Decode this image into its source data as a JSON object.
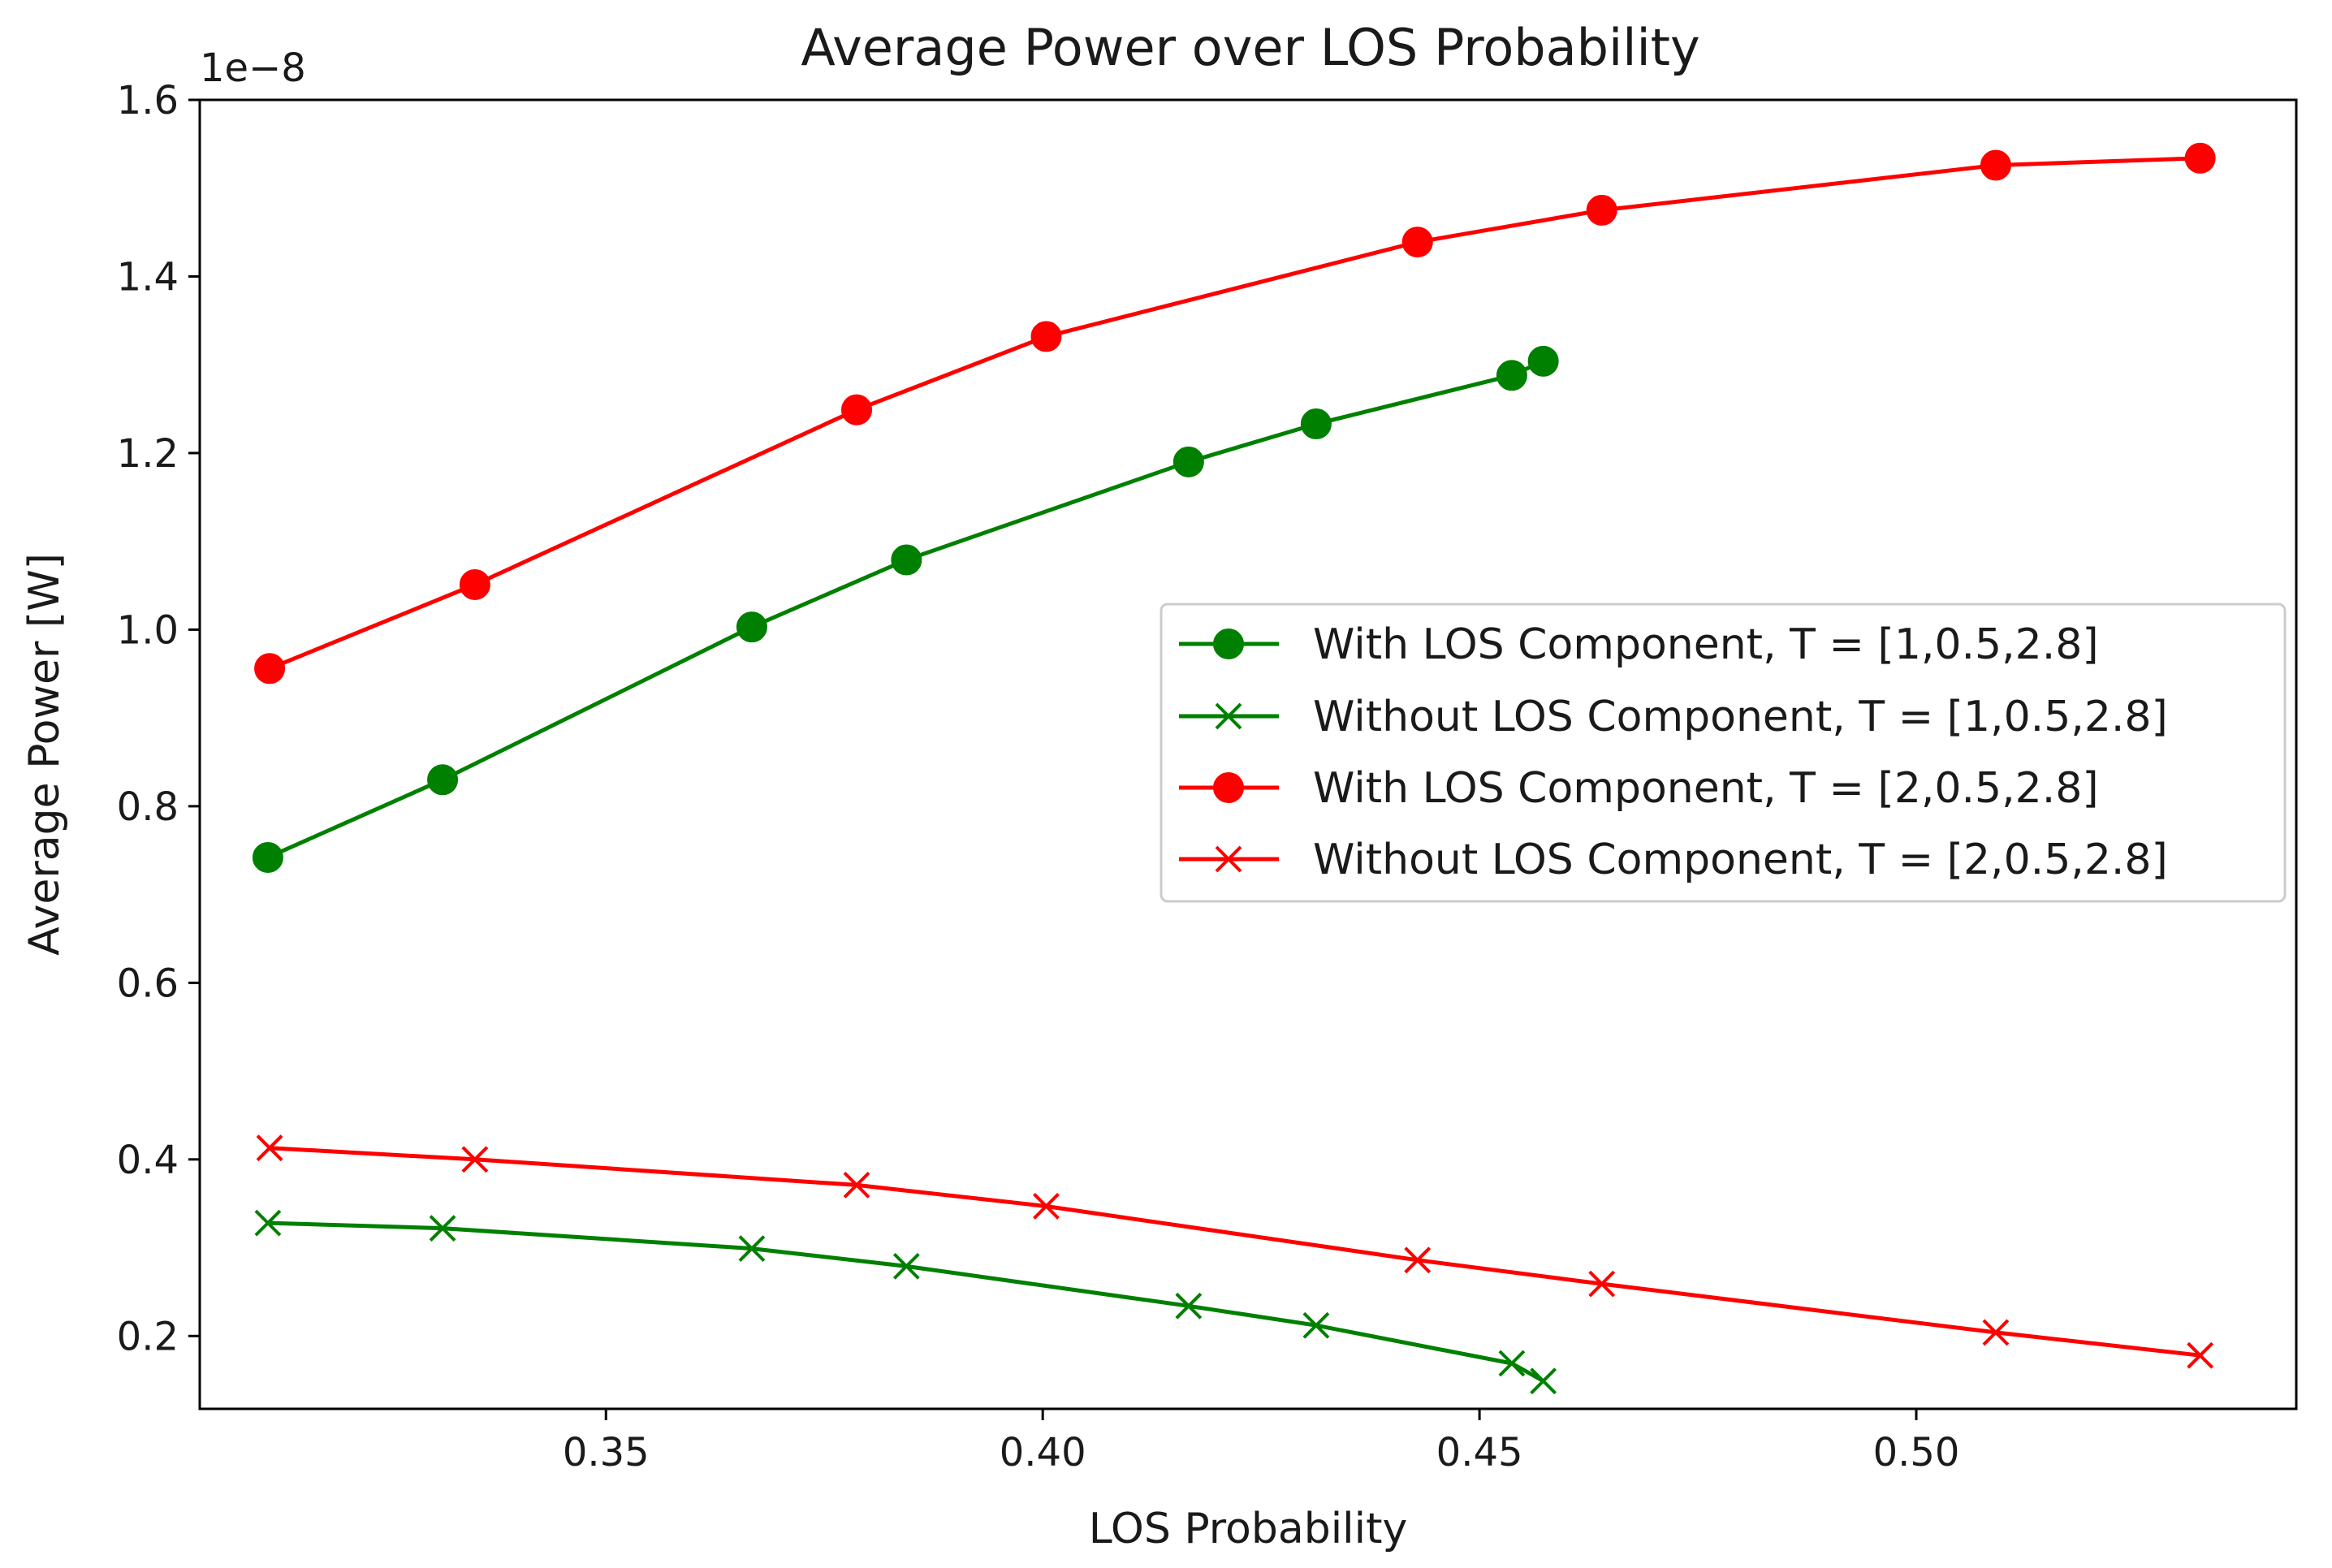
{
  "chart_data": {
    "type": "line",
    "title": "Average Power over LOS Probability",
    "xlabel": "LOS Probability",
    "ylabel": "Average Power [W]",
    "y_offset_label": "1e−8",
    "xlim": [
      0.3035,
      0.5435
    ],
    "ylim": [
      0.1175,
      1.6
    ],
    "x_ticks": [
      0.35,
      0.4,
      0.45,
      0.5
    ],
    "x_tick_labels": [
      "0.35",
      "0.40",
      "0.45",
      "0.50"
    ],
    "y_ticks": [
      0.2,
      0.4,
      0.6,
      0.8,
      1.0,
      1.2,
      1.4,
      1.6
    ],
    "y_tick_labels": [
      "0.2",
      "0.4",
      "0.6",
      "0.8",
      "1.0",
      "1.2",
      "1.4",
      "1.6"
    ],
    "grid": false,
    "legend_position": "center-right",
    "series": [
      {
        "name": "With LOS Component, T = [1,0.5,2.8]",
        "color": "#008000",
        "marker": "circle",
        "x": [
          0.3113,
          0.3313,
          0.3667,
          0.3844,
          0.4167,
          0.4313,
          0.4537,
          0.4573
        ],
        "y": [
          0.742,
          0.83,
          1.003,
          1.079,
          1.19,
          1.233,
          1.288,
          1.304
        ]
      },
      {
        "name": "Without LOS Component, T = [1,0.5,2.8]",
        "color": "#008000",
        "marker": "x",
        "x": [
          0.3113,
          0.3313,
          0.3667,
          0.3844,
          0.4167,
          0.4313,
          0.4537,
          0.4573
        ],
        "y": [
          0.328,
          0.322,
          0.299,
          0.279,
          0.234,
          0.212,
          0.169,
          0.149
        ]
      },
      {
        "name": "With LOS Component, T = [2,0.5,2.8]",
        "color": "#ff0000",
        "marker": "circle",
        "x": [
          0.3115,
          0.335,
          0.3787,
          0.4004,
          0.4429,
          0.464,
          0.5091,
          0.5325
        ],
        "y": [
          0.956,
          1.051,
          1.249,
          1.332,
          1.439,
          1.475,
          1.526,
          1.534
        ]
      },
      {
        "name": "Without LOS Component, T = [2,0.5,2.8]",
        "color": "#ff0000",
        "marker": "x",
        "x": [
          0.3115,
          0.335,
          0.3787,
          0.4004,
          0.4429,
          0.464,
          0.5091,
          0.5325
        ],
        "y": [
          0.413,
          0.4,
          0.371,
          0.347,
          0.286,
          0.259,
          0.204,
          0.178
        ]
      }
    ]
  }
}
